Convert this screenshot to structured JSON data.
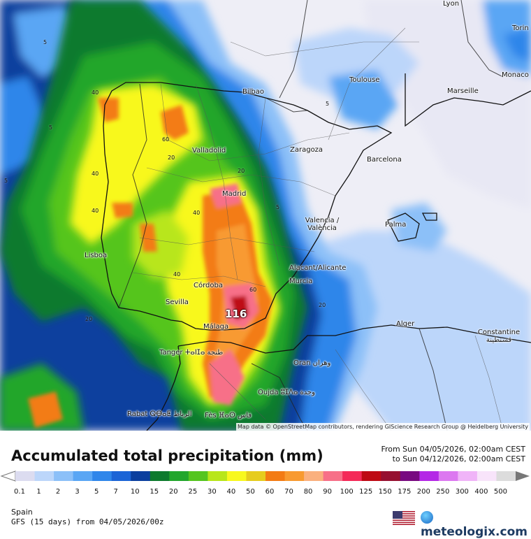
{
  "map": {
    "cities": [
      {
        "name": "Lyon"
      },
      {
        "name": "Torin"
      },
      {
        "name": "Monaco"
      },
      {
        "name": "Toulouse"
      },
      {
        "name": "Marseille"
      },
      {
        "name": "Bilbao"
      },
      {
        "name": "Valladolid"
      },
      {
        "name": "Zaragoza"
      },
      {
        "name": "Barcelona"
      },
      {
        "name": "Madrid"
      },
      {
        "name": "Valencia / València"
      },
      {
        "name": "Palma"
      },
      {
        "name": "Lisboa"
      },
      {
        "name": "Alacant/Alicante"
      },
      {
        "name": "Murcia"
      },
      {
        "name": "Córdoba"
      },
      {
        "name": "Sevilla"
      },
      {
        "name": "Málaga"
      },
      {
        "name": "Alger"
      },
      {
        "name": "Constantine قسنطينة"
      },
      {
        "name": "Tanger ⵜⴰⵏⵊⴰ طنجة"
      },
      {
        "name": "Oran وهران"
      },
      {
        "name": "Oujda ⵓⵊⴷⴰ وجدة"
      },
      {
        "name": "Rabat ⵕⴱⴰⵟ الرباط"
      },
      {
        "name": "Fès ⴼⴰⵙ فاس"
      }
    ],
    "contour_labels": [
      "5",
      "5",
      "5",
      "40",
      "60",
      "5",
      "40",
      "20",
      "40",
      "20",
      "40",
      "20",
      "60",
      "20",
      "5",
      "40"
    ],
    "max_value": "116",
    "attribution": "Map data © OpenStreetMap contributors, rendering GIScience Research Group @ Heidelberg University"
  },
  "legend": {
    "title": "Accumulated total precipitation (mm)",
    "period_from": "From Sun 04/05/2026, 02:00am CEST",
    "period_to": "to Sun 04/12/2026, 02:00am CEST",
    "scale_values": [
      "0.1",
      "1",
      "2",
      "3",
      "5",
      "7",
      "10",
      "15",
      "20",
      "25",
      "30",
      "40",
      "50",
      "60",
      "70",
      "80",
      "90",
      "100",
      "125",
      "150",
      "175",
      "200",
      "250",
      "300",
      "400",
      "500"
    ],
    "scale_colors": [
      "#dcdcf0",
      "#bcd6fa",
      "#8cc0f8",
      "#5aa6f4",
      "#2f86ea",
      "#1b64d6",
      "#0b3f9e",
      "#0d7a2d",
      "#22a62c",
      "#55c51f",
      "#b8e61a",
      "#f8f81e",
      "#e6cc1e",
      "#f37b14",
      "#f89a30",
      "#fab07e",
      "#f77088",
      "#f42a58",
      "#be0a14",
      "#961030",
      "#780a80",
      "#b428e6",
      "#dc78f0",
      "#f0b4f8",
      "#f8e4fa",
      "#dcdcdc"
    ],
    "region": "Spain",
    "model": "GFS (15 days) from 04/05/2026/00z",
    "brand": "meteologix.com",
    "flag_icon": "us-flag-icon"
  }
}
